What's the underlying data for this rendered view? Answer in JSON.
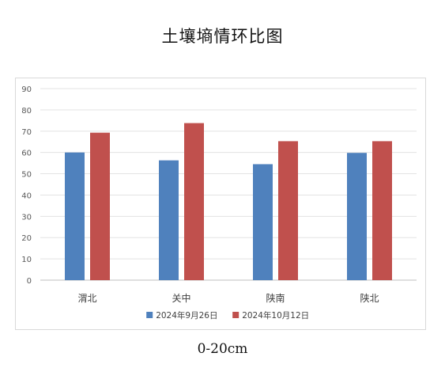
{
  "title": "土壤墒情环比图",
  "caption": "0-20cm",
  "chart_data": {
    "type": "bar",
    "categories": [
      "渭北",
      "关中",
      "陕南",
      "陕北"
    ],
    "series": [
      {
        "name": "2024年9月26日",
        "color": "#4F81BD",
        "values": [
          60,
          56.3,
          54.5,
          59.8
        ]
      },
      {
        "name": "2024年10月12日",
        "color": "#C0504D",
        "values": [
          69.3,
          73.8,
          65.3,
          65.3
        ]
      }
    ],
    "ylim": [
      0,
      90
    ],
    "yticks": [
      0,
      10,
      20,
      30,
      40,
      50,
      60,
      70,
      80,
      90
    ],
    "grid": true,
    "legend_position": "bottom"
  }
}
